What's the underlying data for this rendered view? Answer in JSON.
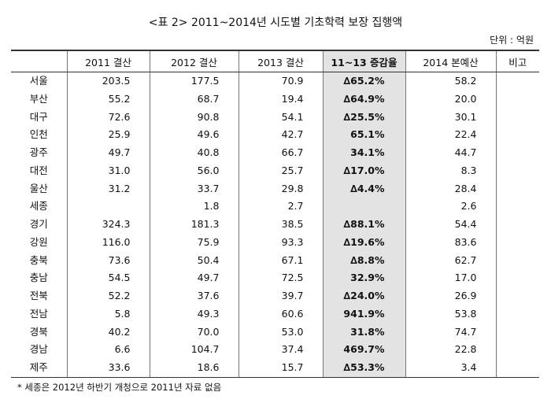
{
  "title": "<표 2> 2011~2014년 시도별 기초학력 보장 집행액",
  "unit": "단위 : 억원",
  "table": {
    "header": [
      "",
      "2011 결산",
      "2012 결산",
      "2013 결산",
      "11~13 증감율",
      "2014 본예산",
      "비고"
    ],
    "rows": [
      [
        "서울",
        "203.5",
        "177.5",
        "70.9",
        "∆65.2%",
        "58.2",
        null
      ],
      [
        "부산",
        "55.2",
        "68.7",
        "19.4",
        "∆64.9%",
        "20.0",
        null
      ],
      [
        "대구",
        "72.6",
        "90.8",
        "54.1",
        "∆25.5%",
        "30.1",
        null
      ],
      [
        "인천",
        "25.9",
        "49.6",
        "42.7",
        "65.1%",
        "22.4",
        null
      ],
      [
        "광주",
        "49.7",
        "40.8",
        "66.7",
        "34.1%",
        "44.7",
        null
      ],
      [
        "대전",
        "31.0",
        "56.0",
        "25.7",
        "∆17.0%",
        "8.3",
        null
      ],
      [
        "울산",
        "31.2",
        "33.7",
        "29.8",
        "∆4.4%",
        "28.4",
        null
      ],
      [
        "세종",
        null,
        "1.8",
        "2.7",
        null,
        "2.6",
        null
      ],
      [
        "경기",
        "324.3",
        "181.3",
        "38.5",
        "∆88.1%",
        "54.4",
        null
      ],
      [
        "강원",
        "116.0",
        "75.9",
        "93.3",
        "∆19.6%",
        "83.6",
        null
      ],
      [
        "충북",
        "73.6",
        "50.4",
        "67.1",
        "∆8.8%",
        "62.7",
        null
      ],
      [
        "충남",
        "54.5",
        "49.7",
        "72.5",
        "32.9%",
        "17.0",
        null
      ],
      [
        "전북",
        "52.2",
        "37.6",
        "39.7",
        "∆24.0%",
        "26.9",
        null
      ],
      [
        "전남",
        "5.8",
        "49.3",
        "60.6",
        "941.9%",
        "53.8",
        null
      ],
      [
        "경북",
        "40.2",
        "70.0",
        "53.0",
        "31.8%",
        "74.7",
        null
      ],
      [
        "경남",
        "6.6",
        "104.7",
        "37.4",
        "469.7%",
        "22.8",
        null
      ],
      [
        "제주",
        "33.6",
        "18.6",
        "15.7",
        "∆53.3%",
        "3.4",
        null
      ]
    ]
  },
  "note": "* 세종은 2012년 하반기 개청으로 2011년 자료 없음"
}
